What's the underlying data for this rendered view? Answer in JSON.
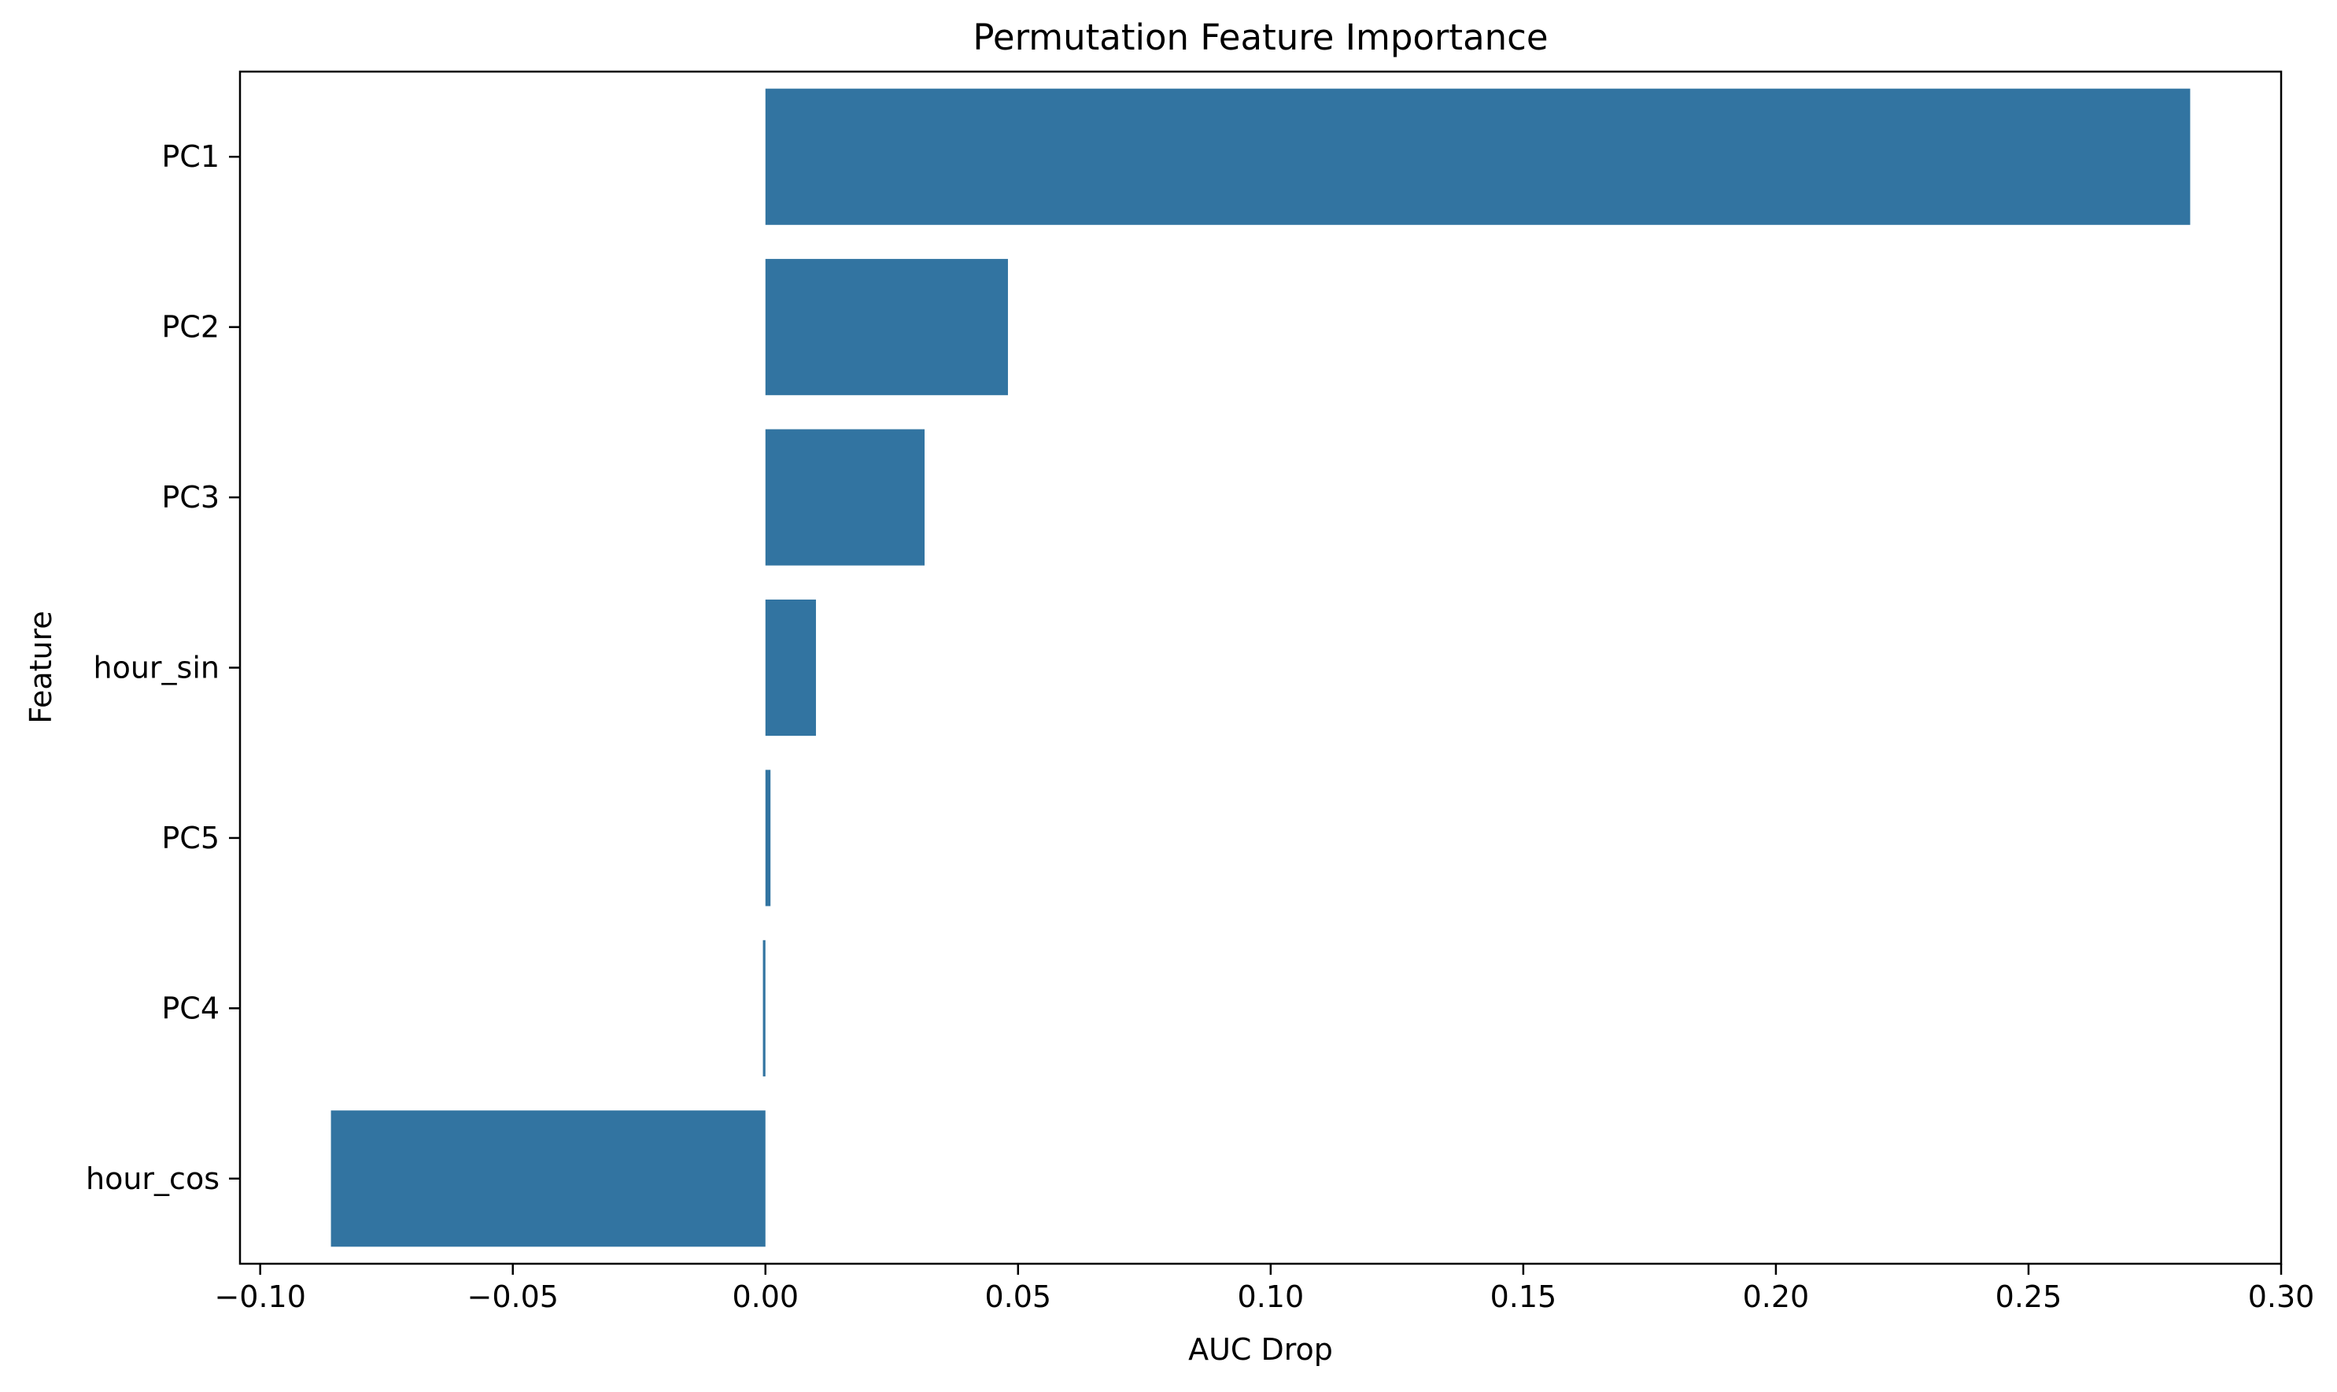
{
  "chart_data": {
    "type": "bar",
    "orientation": "horizontal",
    "title": "Permutation Feature Importance",
    "xlabel": "AUC Drop",
    "ylabel": "Feature",
    "categories": [
      "PC1",
      "PC2",
      "PC3",
      "hour_sin",
      "PC5",
      "PC4",
      "hour_cos"
    ],
    "values": [
      0.282,
      0.048,
      0.0315,
      0.01,
      0.001,
      -0.0005,
      -0.086
    ],
    "xlim": [
      -0.104,
      0.3
    ],
    "xticks": [
      -0.1,
      -0.05,
      0.0,
      0.05,
      0.1,
      0.15,
      0.2,
      0.25,
      0.3
    ],
    "xtick_labels": [
      "−0.10",
      "−0.05",
      "0.00",
      "0.05",
      "0.10",
      "0.15",
      "0.20",
      "0.25",
      "0.30"
    ],
    "grid": false,
    "bar_color": "#3274a1"
  }
}
